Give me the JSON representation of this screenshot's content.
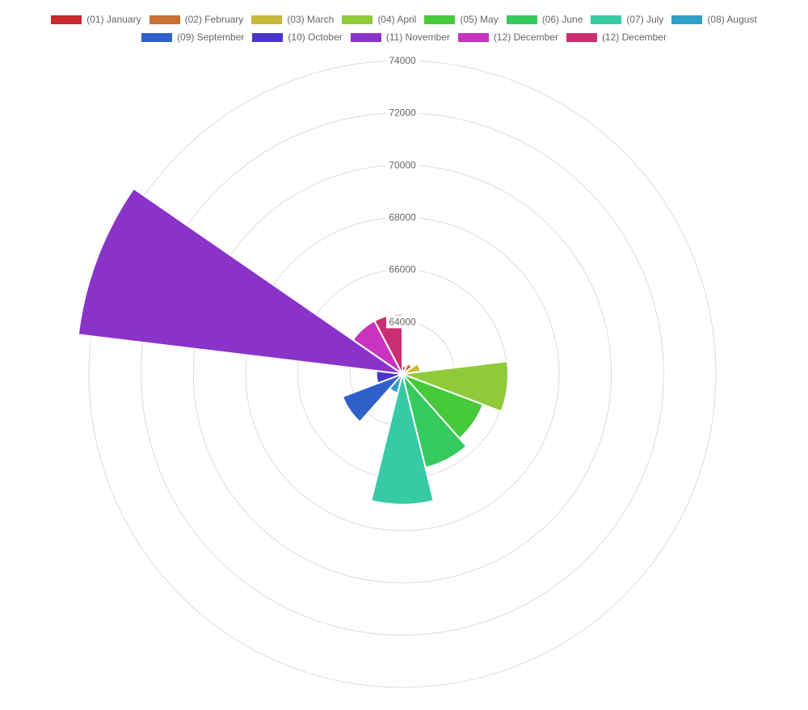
{
  "chart_data": {
    "type": "polarArea",
    "title": "",
    "legend_position": "top",
    "grid": true,
    "r_min": 62000,
    "r_max": 74000,
    "tick_step": 2000,
    "tick_labels": [
      "64000",
      "66000",
      "68000",
      "70000",
      "72000",
      "74000"
    ],
    "categories": [
      "(01) January",
      "(02) February",
      "(03) March",
      "(04) April",
      "(05) May",
      "(06) June",
      "(07) July",
      "(08) August",
      "(09) September",
      "(10) October",
      "(11) November",
      "(12) December",
      "(12) December"
    ],
    "values": [
      62300,
      62450,
      62700,
      66050,
      65300,
      65700,
      67000,
      62750,
      64450,
      63000,
      74500,
      64300,
      64300
    ],
    "colors": [
      "#c9282d",
      "#c96f2f",
      "#c9b83a",
      "#8fca3a",
      "#46c93a",
      "#36c95e",
      "#36caa5",
      "#31a0c9",
      "#2f5fc9",
      "#4a36c9",
      "#8a33c9",
      "#c933c0",
      "#c92f70"
    ]
  }
}
